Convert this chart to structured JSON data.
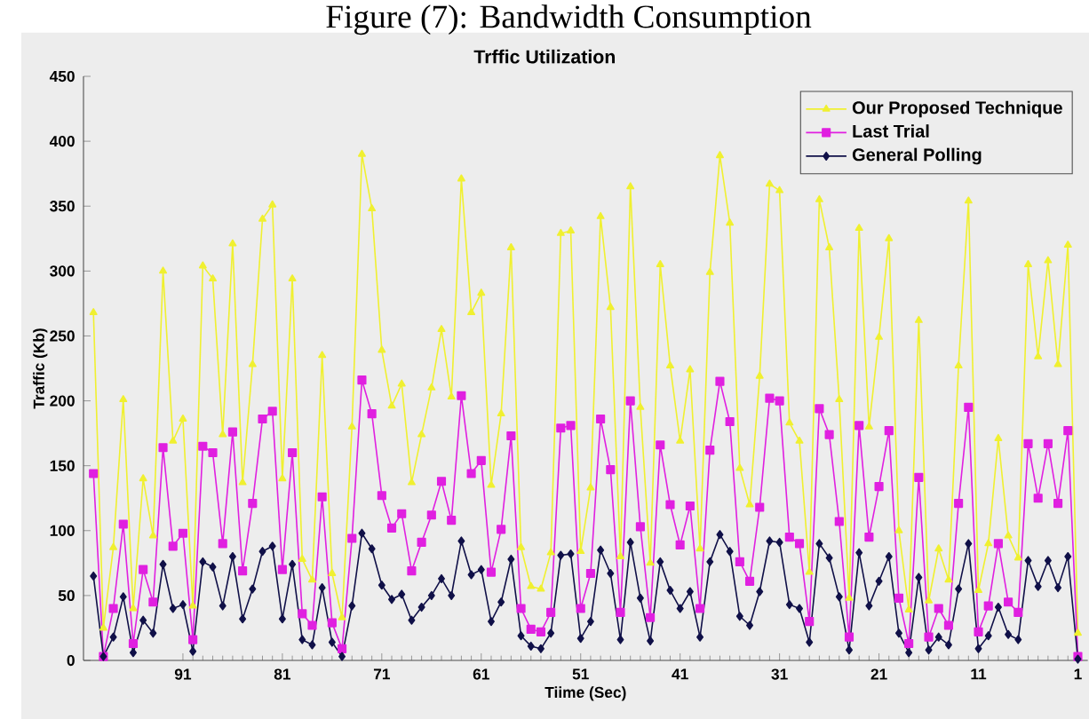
{
  "chart_data": {
    "type": "line",
    "title": "Figure (7): Bandwidth Consumption",
    "subtitle": "Trffic Utilization",
    "xlabel": "Tiime (Sec)",
    "ylabel": "Traffic (Kb)",
    "x": [
      100,
      99,
      98,
      97,
      96,
      95,
      94,
      93,
      92,
      91,
      90,
      89,
      88,
      87,
      86,
      85,
      84,
      83,
      82,
      81,
      80,
      79,
      78,
      77,
      76,
      75,
      74,
      73,
      72,
      71,
      70,
      69,
      68,
      67,
      66,
      65,
      64,
      63,
      62,
      61,
      60,
      59,
      58,
      57,
      56,
      55,
      54,
      53,
      52,
      51,
      50,
      49,
      48,
      47,
      46,
      45,
      44,
      43,
      42,
      41,
      40,
      39,
      38,
      37,
      36,
      35,
      34,
      33,
      32,
      31,
      30,
      29,
      28,
      27,
      26,
      25,
      24,
      23,
      22,
      21,
      20,
      19,
      18,
      17,
      16,
      15,
      14,
      13,
      12,
      11,
      10,
      9,
      8,
      7,
      6,
      5,
      4,
      3,
      2,
      1
    ],
    "series": [
      {
        "name": "Our Proposed Technique",
        "color": "#f0f030",
        "marker": "triangle",
        "values": [
          268,
          25,
          87,
          201,
          40,
          140,
          96,
          300,
          169,
          186,
          42,
          304,
          294,
          174,
          321,
          137,
          228,
          340,
          351,
          140,
          294,
          78,
          62,
          235,
          67,
          33,
          180,
          390,
          348,
          239,
          196,
          213,
          137,
          174,
          210,
          255,
          203,
          371,
          268,
          283,
          135,
          190,
          318,
          87,
          57,
          55,
          83,
          329,
          331,
          84,
          133,
          342,
          272,
          80,
          365,
          195,
          75,
          305,
          227,
          169,
          224,
          86,
          299,
          389,
          337,
          148,
          120,
          219,
          367,
          362,
          183,
          169,
          68,
          355,
          318,
          201,
          48,
          333,
          180,
          249,
          325,
          100,
          39,
          262,
          46,
          86,
          62,
          227,
          354,
          54,
          90,
          171,
          96,
          79,
          305,
          234,
          308,
          228,
          320,
          21
        ]
      },
      {
        "name": "Last Trial",
        "color": "#e020e0",
        "marker": "square",
        "values": [
          144,
          3,
          40,
          105,
          13,
          70,
          45,
          164,
          88,
          98,
          16,
          165,
          160,
          90,
          176,
          69,
          121,
          186,
          192,
          70,
          160,
          36,
          27,
          126,
          29,
          9,
          94,
          216,
          190,
          127,
          102,
          113,
          69,
          91,
          112,
          138,
          108,
          204,
          144,
          154,
          68,
          101,
          173,
          40,
          24,
          22,
          37,
          179,
          181,
          40,
          67,
          186,
          147,
          37,
          200,
          103,
          33,
          166,
          120,
          89,
          119,
          40,
          162,
          215,
          184,
          76,
          61,
          118,
          202,
          200,
          95,
          90,
          30,
          194,
          174,
          107,
          18,
          181,
          95,
          134,
          177,
          48,
          13,
          141,
          18,
          40,
          27,
          121,
          195,
          22,
          42,
          90,
          45,
          37,
          167,
          125,
          167,
          121,
          177,
          3
        ]
      },
      {
        "name": "General Polling",
        "color": "#101048",
        "marker": "diamond",
        "values": [
          65,
          3,
          18,
          49,
          6,
          31,
          21,
          74,
          40,
          43,
          7,
          76,
          72,
          42,
          80,
          32,
          55,
          84,
          88,
          32,
          74,
          16,
          12,
          56,
          14,
          3,
          42,
          98,
          86,
          58,
          47,
          51,
          31,
          41,
          50,
          63,
          50,
          92,
          66,
          70,
          30,
          45,
          78,
          19,
          11,
          9,
          21,
          81,
          82,
          17,
          30,
          85,
          67,
          16,
          91,
          48,
          15,
          76,
          54,
          40,
          53,
          18,
          76,
          97,
          84,
          34,
          27,
          53,
          92,
          91,
          43,
          40,
          14,
          90,
          79,
          49,
          8,
          83,
          42,
          61,
          80,
          21,
          6,
          64,
          8,
          18,
          12,
          55,
          90,
          9,
          19,
          41,
          20,
          16,
          77,
          57,
          77,
          56,
          80,
          1
        ]
      }
    ],
    "xlim": [
      101,
      0
    ],
    "xticks": [
      91,
      81,
      71,
      61,
      51,
      41,
      31,
      21,
      11,
      1
    ],
    "ylim": [
      0,
      450
    ],
    "yticks": [
      0,
      50,
      100,
      150,
      200,
      250,
      300,
      350,
      400,
      450
    ],
    "legend": "top right",
    "grid": false
  }
}
